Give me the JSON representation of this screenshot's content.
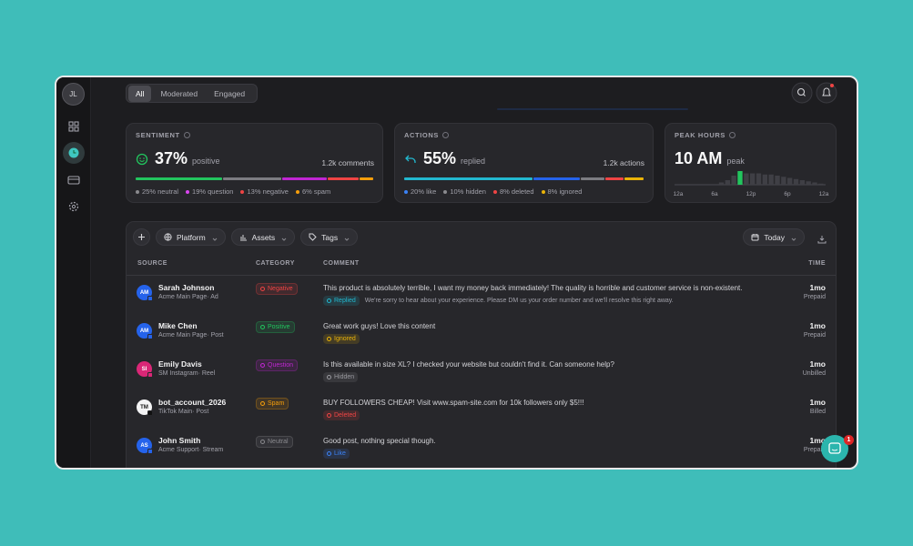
{
  "sidebar": {
    "avatar": "JL"
  },
  "tabs": [
    "All",
    "Moderated",
    "Engaged"
  ],
  "cards": {
    "sentiment": {
      "title": "SENTIMENT",
      "value": "37%",
      "value_label": "positive",
      "count": "1.2k comments",
      "segments": [
        {
          "value": 37,
          "color": "#22c55e"
        },
        {
          "value": 25,
          "color": "#7c7c82"
        },
        {
          "value": 19,
          "color": "#c026d3"
        },
        {
          "value": 13,
          "color": "#ef4444"
        },
        {
          "value": 6,
          "color": "#f59e0b"
        }
      ],
      "legend": [
        {
          "text": "25% neutral",
          "color": "#8a8a8e"
        },
        {
          "text": "19% question",
          "color": "#d946ef"
        },
        {
          "text": "13% negative",
          "color": "#ef4444"
        },
        {
          "text": "6% spam",
          "color": "#f59e0b"
        }
      ]
    },
    "actions": {
      "title": "ACTIONS",
      "value": "55%",
      "value_label": "replied",
      "count": "1.2k actions",
      "segments": [
        {
          "value": 55,
          "color": "#22b8cf"
        },
        {
          "value": 20,
          "color": "#2563eb"
        },
        {
          "value": 10,
          "color": "#7c7c82"
        },
        {
          "value": 8,
          "color": "#ef4444"
        },
        {
          "value": 8,
          "color": "#eab308"
        }
      ],
      "legend": [
        {
          "text": "20% like",
          "color": "#3b82f6"
        },
        {
          "text": "10% hidden",
          "color": "#8a8a8e"
        },
        {
          "text": "8% deleted",
          "color": "#ef4444"
        },
        {
          "text": "8% ignored",
          "color": "#eab308"
        }
      ]
    },
    "peak": {
      "title": "PEAK HOURS",
      "value": "10 AM",
      "value_label": "peak",
      "color": "#3f3f45",
      "highlight_color": "#22c55e",
      "bars": [
        0,
        0,
        0,
        0,
        0,
        0,
        0,
        2,
        4,
        8,
        12,
        10,
        10,
        10,
        9,
        9,
        8,
        7,
        6,
        5,
        4,
        3,
        2,
        1
      ],
      "axis_labels": [
        "12a",
        "6a",
        "12p",
        "6p",
        "12a"
      ]
    }
  },
  "toolbar": {
    "filters": [
      "Platform",
      "Assets",
      "Tags"
    ],
    "date": "Today"
  },
  "table": {
    "headers": [
      "SOURCE",
      "CATEGORY",
      "COMMENT",
      "TIME"
    ],
    "rows": [
      {
        "initials": "AM",
        "avatar_color": "#2563eb",
        "name": "Sarah Johnson",
        "source": "Acme Main Page· Ad",
        "category": "Negative",
        "category_color": "#ef4444",
        "comment": "This product is absolutely terrible, I want my money back immediately! The quality is horrible and customer service is non-existent.",
        "status": "Replied",
        "status_color": "#22b8cf",
        "reply": "We're sorry to hear about your experience. Please DM us your order number and we'll resolve this right away.",
        "time": "1mo",
        "billing": "Prepaid"
      },
      {
        "initials": "AM",
        "avatar_color": "#2563eb",
        "name": "Mike Chen",
        "source": "Acme Main Page· Post",
        "category": "Positive",
        "category_color": "#22c55e",
        "comment": "Great work guys! Love this content",
        "status": "Ignored",
        "status_color": "#eab308",
        "time": "1mo",
        "billing": "Prepaid"
      },
      {
        "initials": "SI",
        "avatar_color": "#db2777",
        "name": "Emily Davis",
        "source": "SM Instagram· Reel",
        "category": "Question",
        "category_color": "#c026d3",
        "comment": "Is this available in size XL? I checked your website but couldn't find it. Can someone help?",
        "status": "Hidden",
        "status_color": "#9a9aa0",
        "time": "1mo",
        "billing": "Unbilled"
      },
      {
        "initials": "TM",
        "avatar_color": "#f4f4f5",
        "name": "bot_account_2026",
        "source": "TikTok Main· Post",
        "category": "Spam",
        "category_color": "#f59e0b",
        "comment": "BUY FOLLOWERS CHEAP! Visit www.spam-site.com for 10k followers only $5!!!",
        "status": "Deleted",
        "status_color": "#ef4444",
        "time": "1mo",
        "billing": "Billed"
      },
      {
        "initials": "AS",
        "avatar_color": "#2563eb",
        "name": "John Smith",
        "source": "Acme Support· Stream",
        "category": "Neutral",
        "category_color": "#8a8a8e",
        "comment": "Good post, nothing special though.",
        "status": "Like",
        "status_color": "#3b82f6",
        "time": "1mo",
        "billing": "Prepaid"
      }
    ]
  },
  "chat": {
    "badge": "1"
  }
}
